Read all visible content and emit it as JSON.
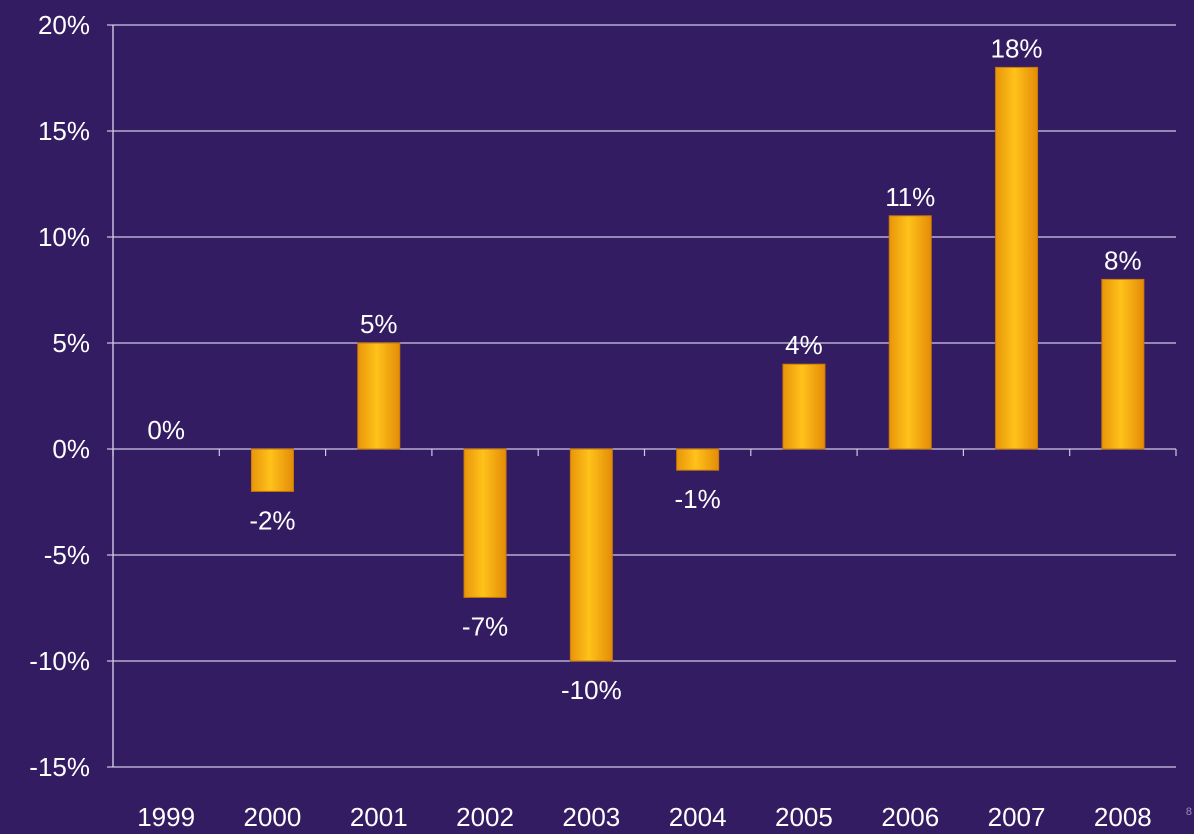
{
  "chart_data": {
    "type": "bar",
    "categories": [
      "1999",
      "2000",
      "2001",
      "2002",
      "2003",
      "2004",
      "2005",
      "2006",
      "2007",
      "2008"
    ],
    "values": [
      0,
      -2,
      5,
      -7,
      -10,
      -1,
      4,
      11,
      18,
      8
    ],
    "data_labels": [
      "0%",
      "-2%",
      "5%",
      "-7%",
      "-10%",
      "-1%",
      "4%",
      "11%",
      "18%",
      "8%"
    ],
    "ylim": [
      -15,
      20
    ],
    "yticks": [
      20,
      15,
      10,
      5,
      0,
      -5,
      -10,
      -15
    ],
    "ytick_labels": [
      "20%",
      "15%",
      "10%",
      "5%",
      "0%",
      "-5%",
      "-10%",
      "-15%"
    ],
    "grid": true,
    "legend": "none",
    "title": "",
    "xlabel": "",
    "ylabel": ""
  },
  "colors": {
    "background": "#341c63",
    "bar_light": "#ffc21a",
    "bar_dark": "#e8950a",
    "gridline": "#cfc8e6",
    "text": "#ffffff"
  },
  "page_mark": "8"
}
